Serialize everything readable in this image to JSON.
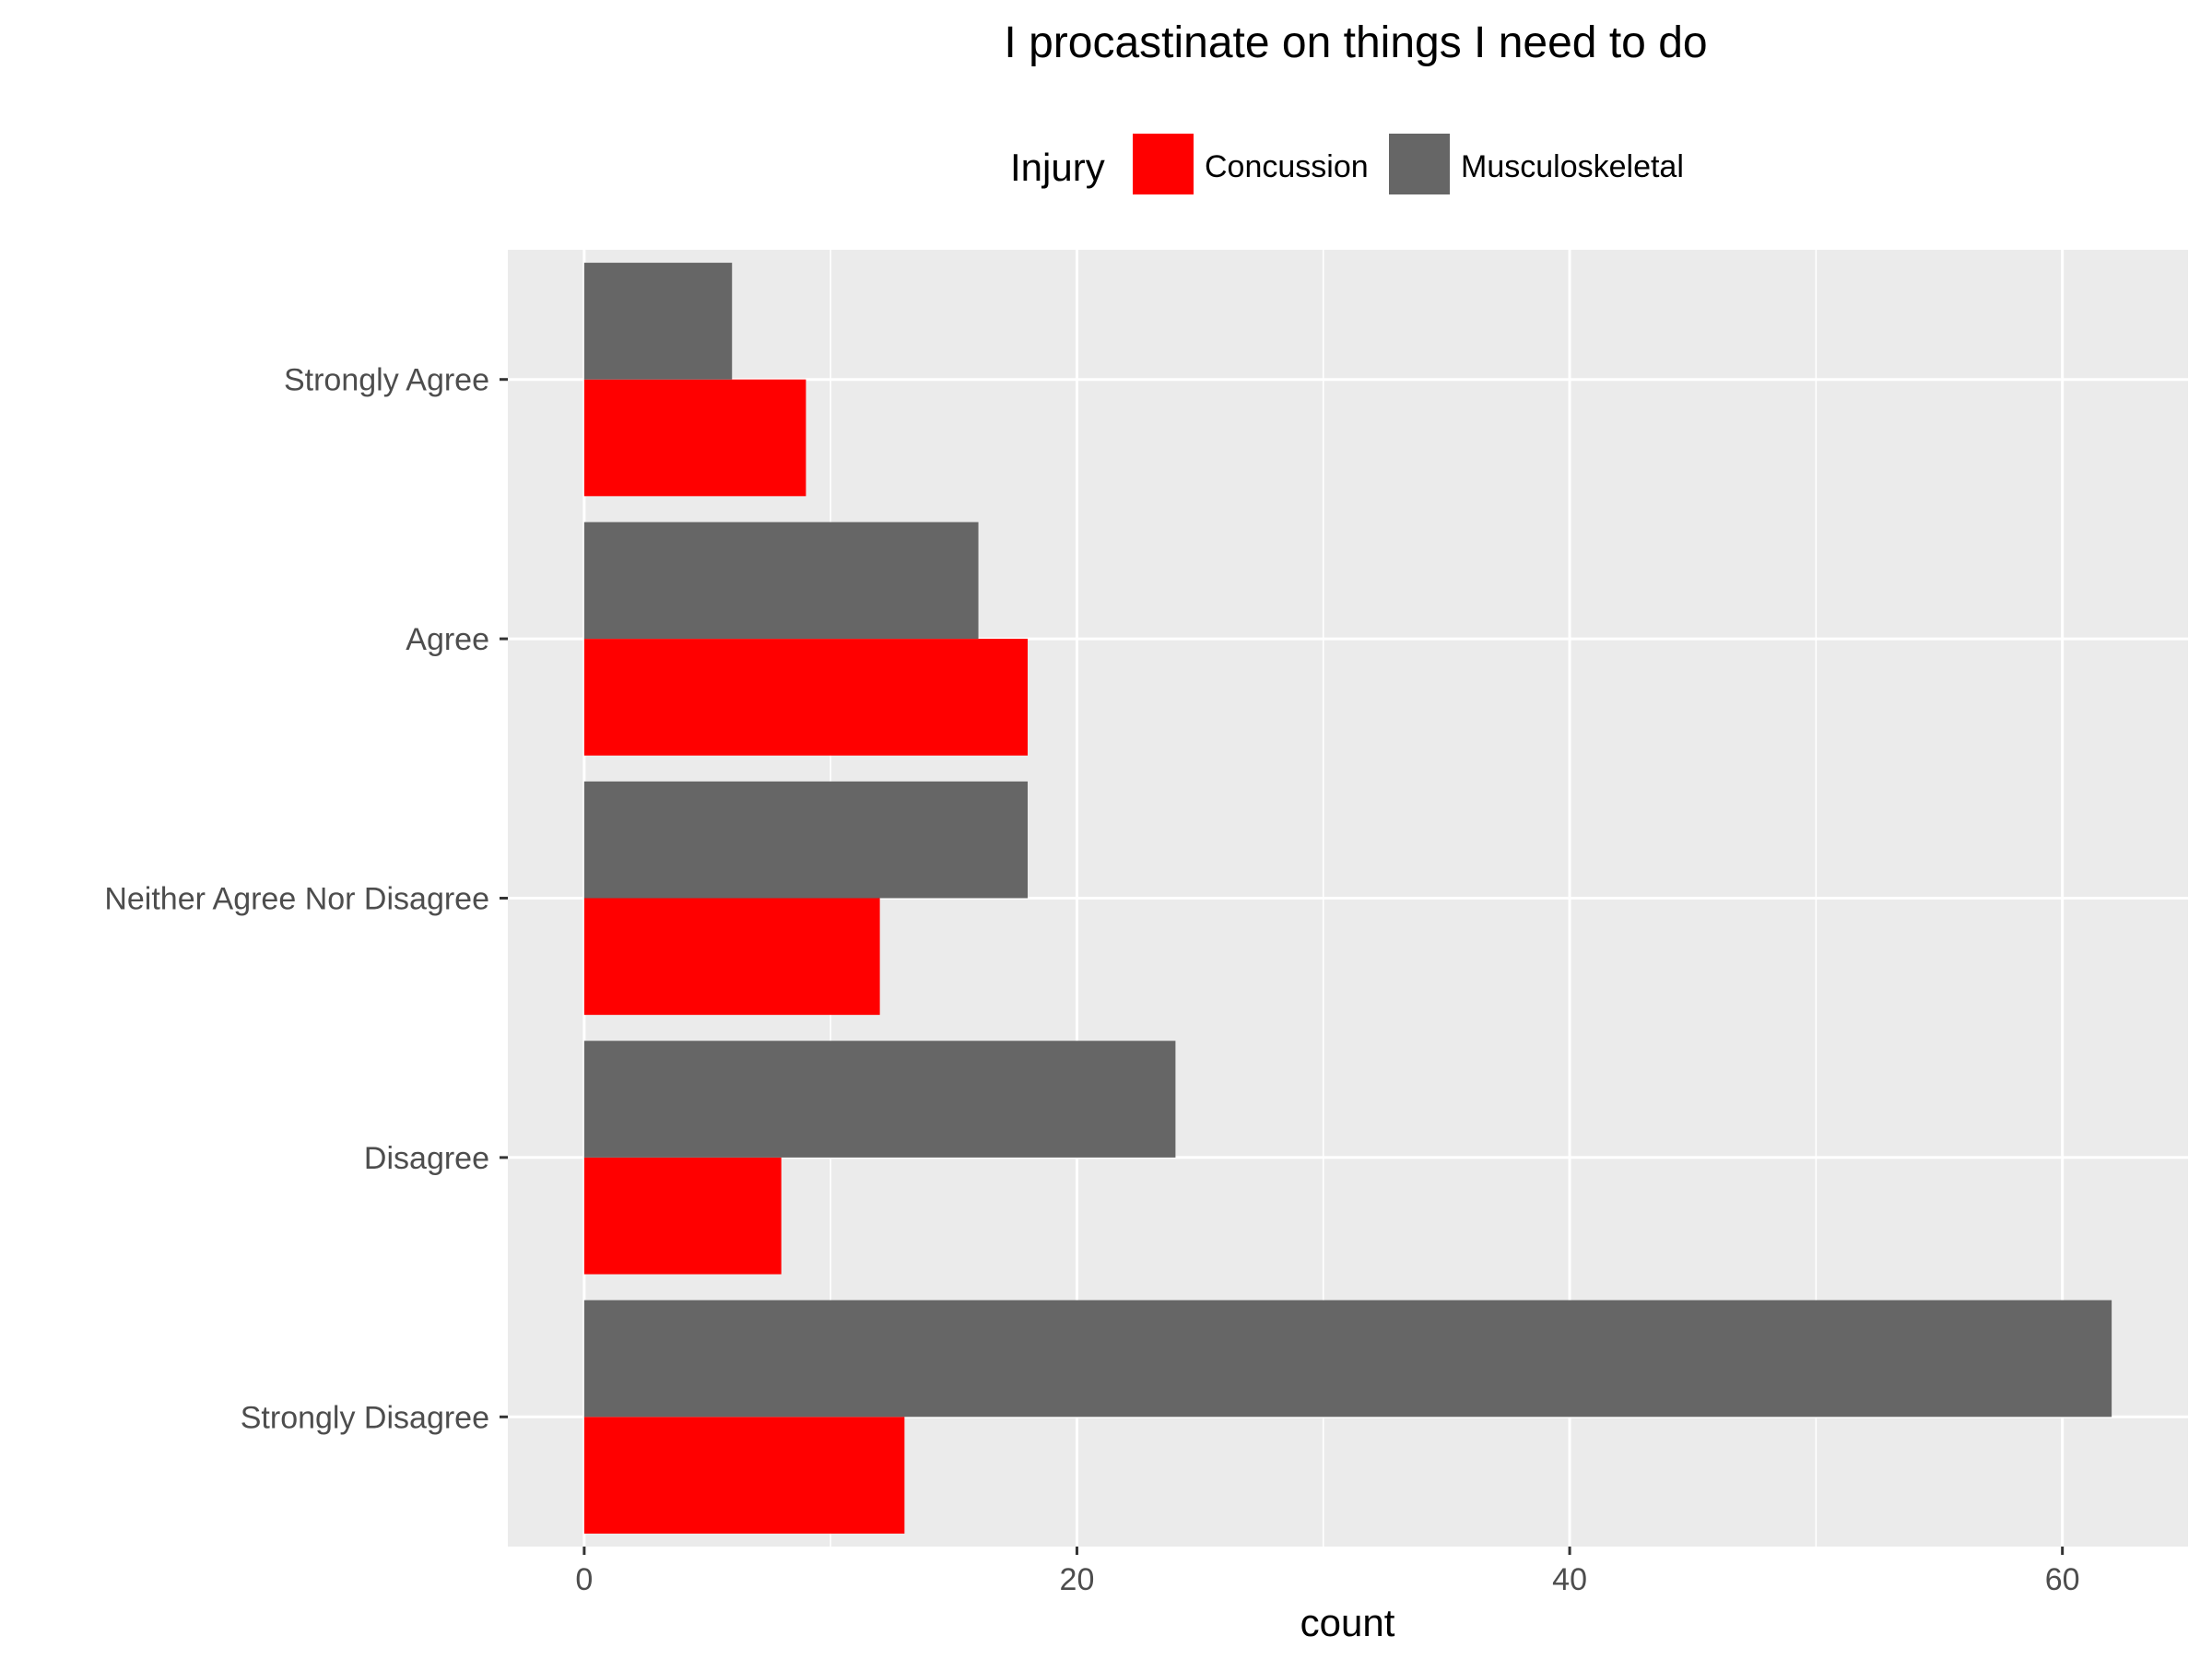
{
  "chart_data": {
    "type": "bar",
    "orientation": "horizontal",
    "title": "I procastinate on things I need to do",
    "xlabel": "count",
    "ylabel": "",
    "categories": [
      "Strongly Agree",
      "Agree",
      "Neither Agree Nor Disagree",
      "Disagree",
      "Strongly Disagree"
    ],
    "series": [
      {
        "name": "Concussion",
        "color": "#ff0000",
        "values": [
          9,
          18,
          12,
          8,
          13
        ]
      },
      {
        "name": "Musculoskeletal",
        "color": "#666666",
        "values": [
          6,
          16,
          18,
          24,
          62
        ]
      }
    ],
    "xlim": [
      -3.1,
      65.1
    ],
    "xticks": [
      0,
      20,
      40,
      60
    ],
    "xtick_labels": [
      "0",
      "20",
      "40",
      "60"
    ],
    "legend": {
      "title": "Injury",
      "position": "top"
    },
    "grid": true,
    "panel_background": "#ebebeb"
  }
}
